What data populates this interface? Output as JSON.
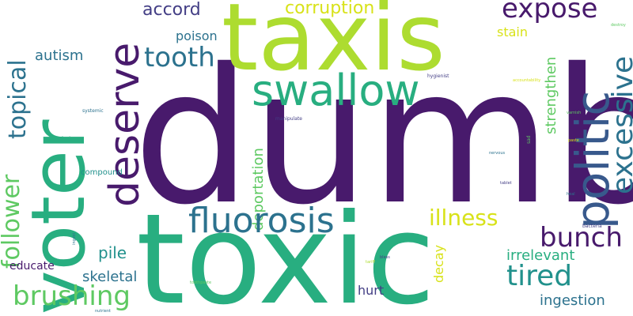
{
  "colors": {
    "background": "#ffffff",
    "dark_purple": "#481a6c",
    "indigo": "#433e85",
    "blue": "#38598c",
    "steel": "#2c728e",
    "teal": "#21918c",
    "green_teal": "#28ae80",
    "green": "#5ec962",
    "lime": "#addc30",
    "yellow": "#d8e219"
  },
  "words": {
    "dumb": "dumb",
    "toxic": "toxic",
    "taxis": "taxis",
    "voter": "voter",
    "swallow": "swallow",
    "deserve": "deserve",
    "politic": "politic",
    "fluorosis": "fluorosis",
    "excessive": "excessive",
    "tooth": "tooth",
    "expose": "expose",
    "follower": "follower",
    "topical": "topical",
    "brushing": "brushing",
    "bunch": "bunch",
    "tired": "tired",
    "illness": "illness",
    "accord": "accord",
    "corruption": "corruption",
    "deportation": "deportation",
    "strengthen": "strengthen",
    "autism": "autism",
    "poison": "poison",
    "stain": "stain",
    "pile": "pile",
    "skeletal": "skeletal",
    "irrelevant": "irrelevant",
    "ingestion": "ingestion",
    "hurt": "hurt",
    "educate": "educate",
    "decay": "decay",
    "compound": "compound",
    "hygienist": "hygienist",
    "manipulate": "manipulate",
    "systemic": "systemic",
    "denier": "denier",
    "accountability": "accountability",
    "varnish": "varnish",
    "destroy": "destroy",
    "sad": "sad",
    "paste": "paste",
    "nervous": "nervous",
    "tablet": "tablet",
    "heal": "heal",
    "bacteria": "bacteria",
    "ingest": "ingest",
    "bless": "bless",
    "tariff": "tariff",
    "toothpaste": "toothpaste",
    "nutrient": "nutrient"
  }
}
